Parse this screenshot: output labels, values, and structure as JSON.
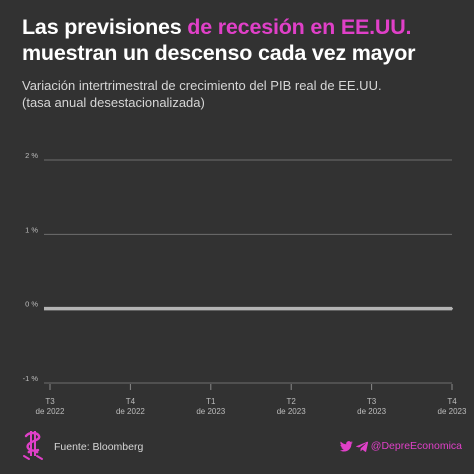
{
  "title": {
    "part1": "Las previsiones ",
    "highlight": "de recesión en EE.UU.",
    "part2": "muestran un descenso cada vez mayor"
  },
  "subtitle": {
    "line1": "Variación intertrimestral de crecimiento del PIB real de EE.UU.",
    "line2": "(tasa anual desestacionalizada)"
  },
  "colors": {
    "background": "#323232",
    "accent": "#e040c8",
    "series": "#b4b4b4",
    "grid": "#6e6e6e"
  },
  "chart_data": {
    "type": "line",
    "x": [
      "T3|de 2022",
      "T4|de 2022",
      "T1|de 2023",
      "T2|de 2023",
      "T3|de 2023",
      "T4|de 2023"
    ],
    "y_ticks": [
      {
        "value": 2,
        "label": "2 %"
      },
      {
        "value": 1,
        "label": "1 %"
      },
      {
        "value": 0,
        "label": "0 %"
      },
      {
        "value": -1,
        "label": "-1 %"
      }
    ],
    "ylim": [
      -1,
      2
    ],
    "grid": true,
    "series": [
      {
        "values": [
          0,
          0,
          0,
          0,
          0,
          0
        ]
      }
    ]
  },
  "footer": {
    "logo_icon": "dollar-sign-logo-icon",
    "source": "Fuente: Bloomberg",
    "social_icons": [
      "twitter-icon",
      "telegram-icon"
    ],
    "handle": "@DepreEconomica"
  }
}
